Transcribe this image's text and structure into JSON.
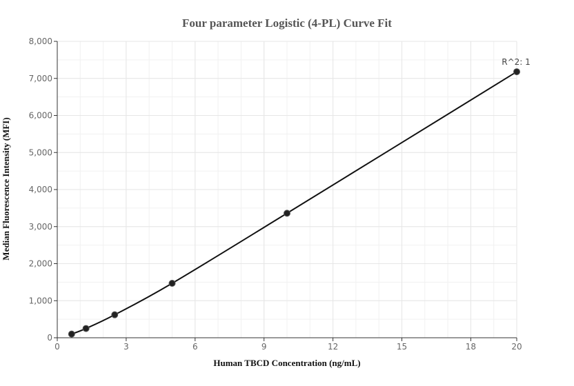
{
  "chart_data": {
    "type": "scatter",
    "title": "Four parameter Logistic (4-PL) Curve Fit",
    "xlabel": "Human TBCD Concentration (ng/mL)",
    "ylabel": "Median Fluorescence Intensity (MFI)",
    "xlim": [
      0,
      20
    ],
    "ylim": [
      0,
      8000
    ],
    "x_ticks": [
      0,
      3,
      6,
      9,
      12,
      15,
      18,
      20
    ],
    "x_tick_labels": [
      "0",
      "3",
      "6",
      "9",
      "12",
      "15",
      "18",
      "20"
    ],
    "y_ticks": [
      0,
      1000,
      2000,
      3000,
      4000,
      5000,
      6000,
      7000,
      8000
    ],
    "y_tick_labels": [
      "0",
      "1,000",
      "2,000",
      "3,000",
      "4,000",
      "5,000",
      "6,000",
      "7,000",
      "8,000"
    ],
    "grid": true,
    "series": [
      {
        "points": [
          {
            "x": 0.625,
            "y": 100
          },
          {
            "x": 1.25,
            "y": 250
          },
          {
            "x": 2.5,
            "y": 620
          },
          {
            "x": 5,
            "y": 1470
          },
          {
            "x": 10,
            "y": 3360
          },
          {
            "x": 20,
            "y": 7180
          }
        ],
        "color": "#222222"
      }
    ],
    "fit_curve": [
      {
        "x": 0.625,
        "y": 100
      },
      {
        "x": 1.25,
        "y": 250
      },
      {
        "x": 2.5,
        "y": 620
      },
      {
        "x": 5,
        "y": 1470
      },
      {
        "x": 10,
        "y": 3360
      },
      {
        "x": 20,
        "y": 7180
      }
    ],
    "annotation": "R^2: 1",
    "colors": {
      "line": "#111111",
      "point": "#222222",
      "grid": "#e6e6e6",
      "axis": "#333333"
    }
  }
}
